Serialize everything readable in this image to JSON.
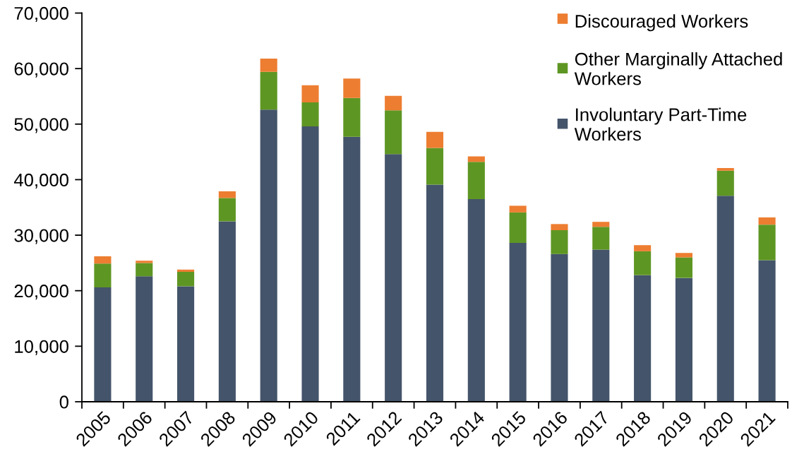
{
  "chart_data": {
    "type": "bar",
    "stacked": true,
    "categories": [
      "2005",
      "2006",
      "2007",
      "2008",
      "2009",
      "2010",
      "2011",
      "2012",
      "2013",
      "2014",
      "2015",
      "2016",
      "2017",
      "2018",
      "2019",
      "2020",
      "2021"
    ],
    "series": [
      {
        "name": "Involuntary Part-Time\nWorkers",
        "color": "#44546a",
        "values": [
          20600,
          22600,
          20800,
          32500,
          52600,
          49600,
          47700,
          44600,
          39100,
          36500,
          28600,
          26600,
          27400,
          22800,
          22300,
          37100,
          25500
        ]
      },
      {
        "name": "Other Marginally Attached\nWorkers",
        "color": "#5e9623",
        "values": [
          4300,
          2400,
          2600,
          4200,
          6800,
          4300,
          7000,
          7900,
          6600,
          6700,
          5500,
          4300,
          4100,
          4300,
          3700,
          4500,
          6400
        ]
      },
      {
        "name": "Discouraged Workers",
        "color": "#ed7d31",
        "values": [
          1300,
          400,
          400,
          1200,
          2400,
          3100,
          3500,
          2600,
          2900,
          1000,
          1200,
          1100,
          900,
          1100,
          800,
          500,
          1300
        ]
      }
    ],
    "ylim": [
      0,
      70000
    ],
    "yticks": [
      0,
      {
        "value": 10000,
        "label": "10,000"
      },
      {
        "value": 20000,
        "label": "20,000"
      },
      {
        "value": 30000,
        "label": "30,000"
      },
      {
        "value": 40000,
        "label": "40,000"
      },
      {
        "value": 50000,
        "label": "50,000"
      },
      {
        "value": 60000,
        "label": "60,000"
      },
      {
        "value": 70000,
        "label": "70,000"
      }
    ],
    "legend": "top right",
    "grid": false
  }
}
